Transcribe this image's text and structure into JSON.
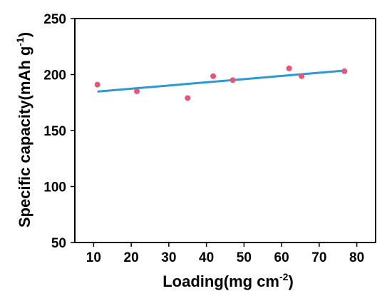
{
  "chart_data": {
    "type": "scatter",
    "xlabel": "Loading(mg cm",
    "xlabel_sup": "-2",
    "xlabel_close": ")",
    "ylabel": "Specific capacity(mAh g",
    "ylabel_sup": "-1",
    "ylabel_close": ")",
    "xlim": [
      5,
      85
    ],
    "ylim": [
      50,
      250
    ],
    "xticks": [
      10,
      20,
      30,
      40,
      50,
      60,
      70,
      80
    ],
    "yticks": [
      50,
      100,
      150,
      200,
      250
    ],
    "grid": false,
    "series": [
      {
        "kind": "points",
        "color": "#e8557a",
        "x": [
          11,
          21.5,
          35,
          41.8,
          47,
          62,
          65.3,
          76.7
        ],
        "y": [
          191,
          185,
          179,
          198.5,
          195,
          205.5,
          198.5,
          203
        ]
      },
      {
        "kind": "fit-line",
        "color": "#2b9ad4",
        "x": [
          11,
          76.7
        ],
        "y": [
          184.8,
          203.5
        ]
      }
    ]
  }
}
